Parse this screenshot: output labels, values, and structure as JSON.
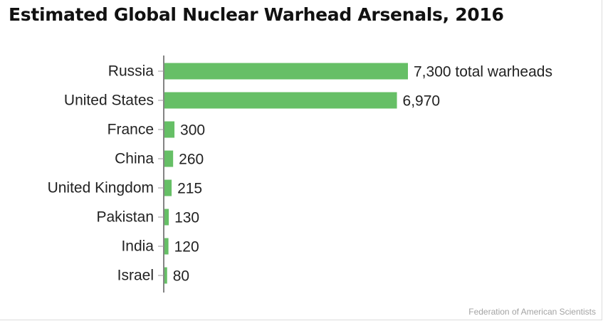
{
  "title": "Estimated Global Nuclear Warhead Arsenals, 2016",
  "source": "Federation of American Scientists",
  "colors": {
    "bar": "#66bf66",
    "axis": "#333333",
    "label": "#222222"
  },
  "chart_data": {
    "type": "bar",
    "orientation": "horizontal",
    "title": "Estimated Global Nuclear Warhead Arsenals, 2016",
    "xlabel": "",
    "ylabel": "",
    "categories": [
      "Russia",
      "United States",
      "France",
      "China",
      "United Kingdom",
      "Pakistan",
      "India",
      "Israel"
    ],
    "values": [
      7300,
      6970,
      300,
      260,
      215,
      130,
      120,
      80
    ],
    "value_labels": [
      "7,300 total warheads",
      "6,970",
      "300",
      "260",
      "215",
      "130",
      "120",
      "80"
    ],
    "xlim": [
      0,
      7300
    ],
    "grid": false,
    "legend": "none"
  }
}
